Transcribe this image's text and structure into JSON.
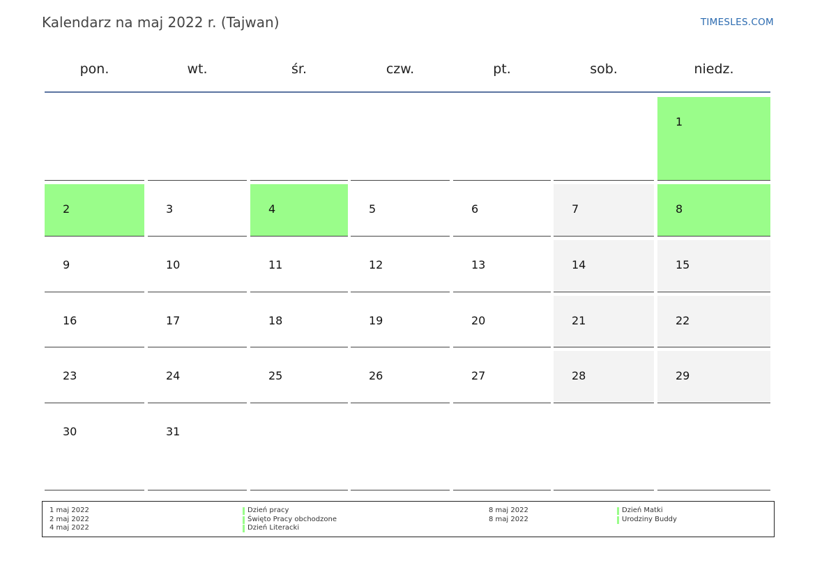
{
  "title": "Kalendarz na maj 2022 r. (Tajwan)",
  "site": "TIMESLES.COM",
  "colors": {
    "holiday": "#9afd8a",
    "weekend": "#f3f3f3",
    "header_rule": "#5a74a0",
    "site_link": "#2c6bb0"
  },
  "weekdays": [
    "pon.",
    "wt.",
    "śr.",
    "czw.",
    "pt.",
    "sob.",
    "niedz."
  ],
  "weeks": [
    [
      "",
      "",
      "",
      "",
      "",
      "",
      "1"
    ],
    [
      "2",
      "3",
      "4",
      "5",
      "6",
      "7",
      "8"
    ],
    [
      "9",
      "10",
      "11",
      "12",
      "13",
      "14",
      "15"
    ],
    [
      "16",
      "17",
      "18",
      "19",
      "20",
      "21",
      "22"
    ],
    [
      "23",
      "24",
      "25",
      "26",
      "27",
      "28",
      "29"
    ],
    [
      "30",
      "31",
      "",
      "",
      "",
      "",
      ""
    ]
  ],
  "holiday_days": [
    "1",
    "2",
    "4",
    "8"
  ],
  "legend": {
    "left": [
      {
        "date": "1 maj 2022",
        "name": "Dzień pracy"
      },
      {
        "date": "2 maj 2022",
        "name": "Święto Pracy obchodzone"
      },
      {
        "date": "4 maj 2022",
        "name": "Dzień Literacki"
      }
    ],
    "right": [
      {
        "date": "8 maj 2022",
        "name": "Dzień Matki"
      },
      {
        "date": "8 maj 2022",
        "name": "Urodziny Buddy"
      }
    ]
  }
}
